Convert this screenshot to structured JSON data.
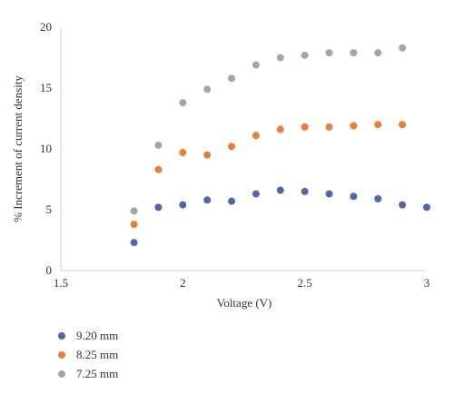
{
  "chart_data": {
    "type": "scatter",
    "title": "",
    "xlabel": "Voltage (V)",
    "ylabel": "% Increment of current density",
    "xlim": [
      1.5,
      3
    ],
    "ylim": [
      0,
      20
    ],
    "x_ticks": [
      "1.5",
      "2",
      "2.5",
      "3"
    ],
    "y_ticks": [
      "0",
      "5",
      "10",
      "15",
      "20"
    ],
    "grid": false,
    "legend_position": "bottom-left",
    "series": [
      {
        "name": "9.20 mm",
        "color": "#5065ad",
        "x": [
          1.8,
          1.9,
          2.0,
          2.1,
          2.2,
          2.3,
          2.4,
          2.5,
          2.6,
          2.7,
          2.8,
          2.9,
          3.0
        ],
        "y": [
          2.3,
          5.2,
          5.4,
          5.8,
          5.7,
          6.3,
          6.6,
          6.5,
          6.3,
          6.1,
          5.9,
          5.4,
          5.2
        ]
      },
      {
        "name": "8.25 mm",
        "color": "#ed7d31",
        "x": [
          1.8,
          1.9,
          2.0,
          2.1,
          2.2,
          2.3,
          2.4,
          2.5,
          2.6,
          2.7,
          2.8,
          2.9
        ],
        "y": [
          3.8,
          8.3,
          9.7,
          9.5,
          10.2,
          11.1,
          11.6,
          11.8,
          11.8,
          11.9,
          12.0,
          12.0
        ]
      },
      {
        "name": "7.25 mm",
        "color": "#a5a5a5",
        "x": [
          1.8,
          1.9,
          2.0,
          2.1,
          2.2,
          2.3,
          2.4,
          2.5,
          2.6,
          2.7,
          2.8,
          2.9
        ],
        "y": [
          4.9,
          10.3,
          13.8,
          14.9,
          15.8,
          16.9,
          17.5,
          17.7,
          17.9,
          17.9,
          17.9,
          18.3
        ]
      }
    ]
  }
}
